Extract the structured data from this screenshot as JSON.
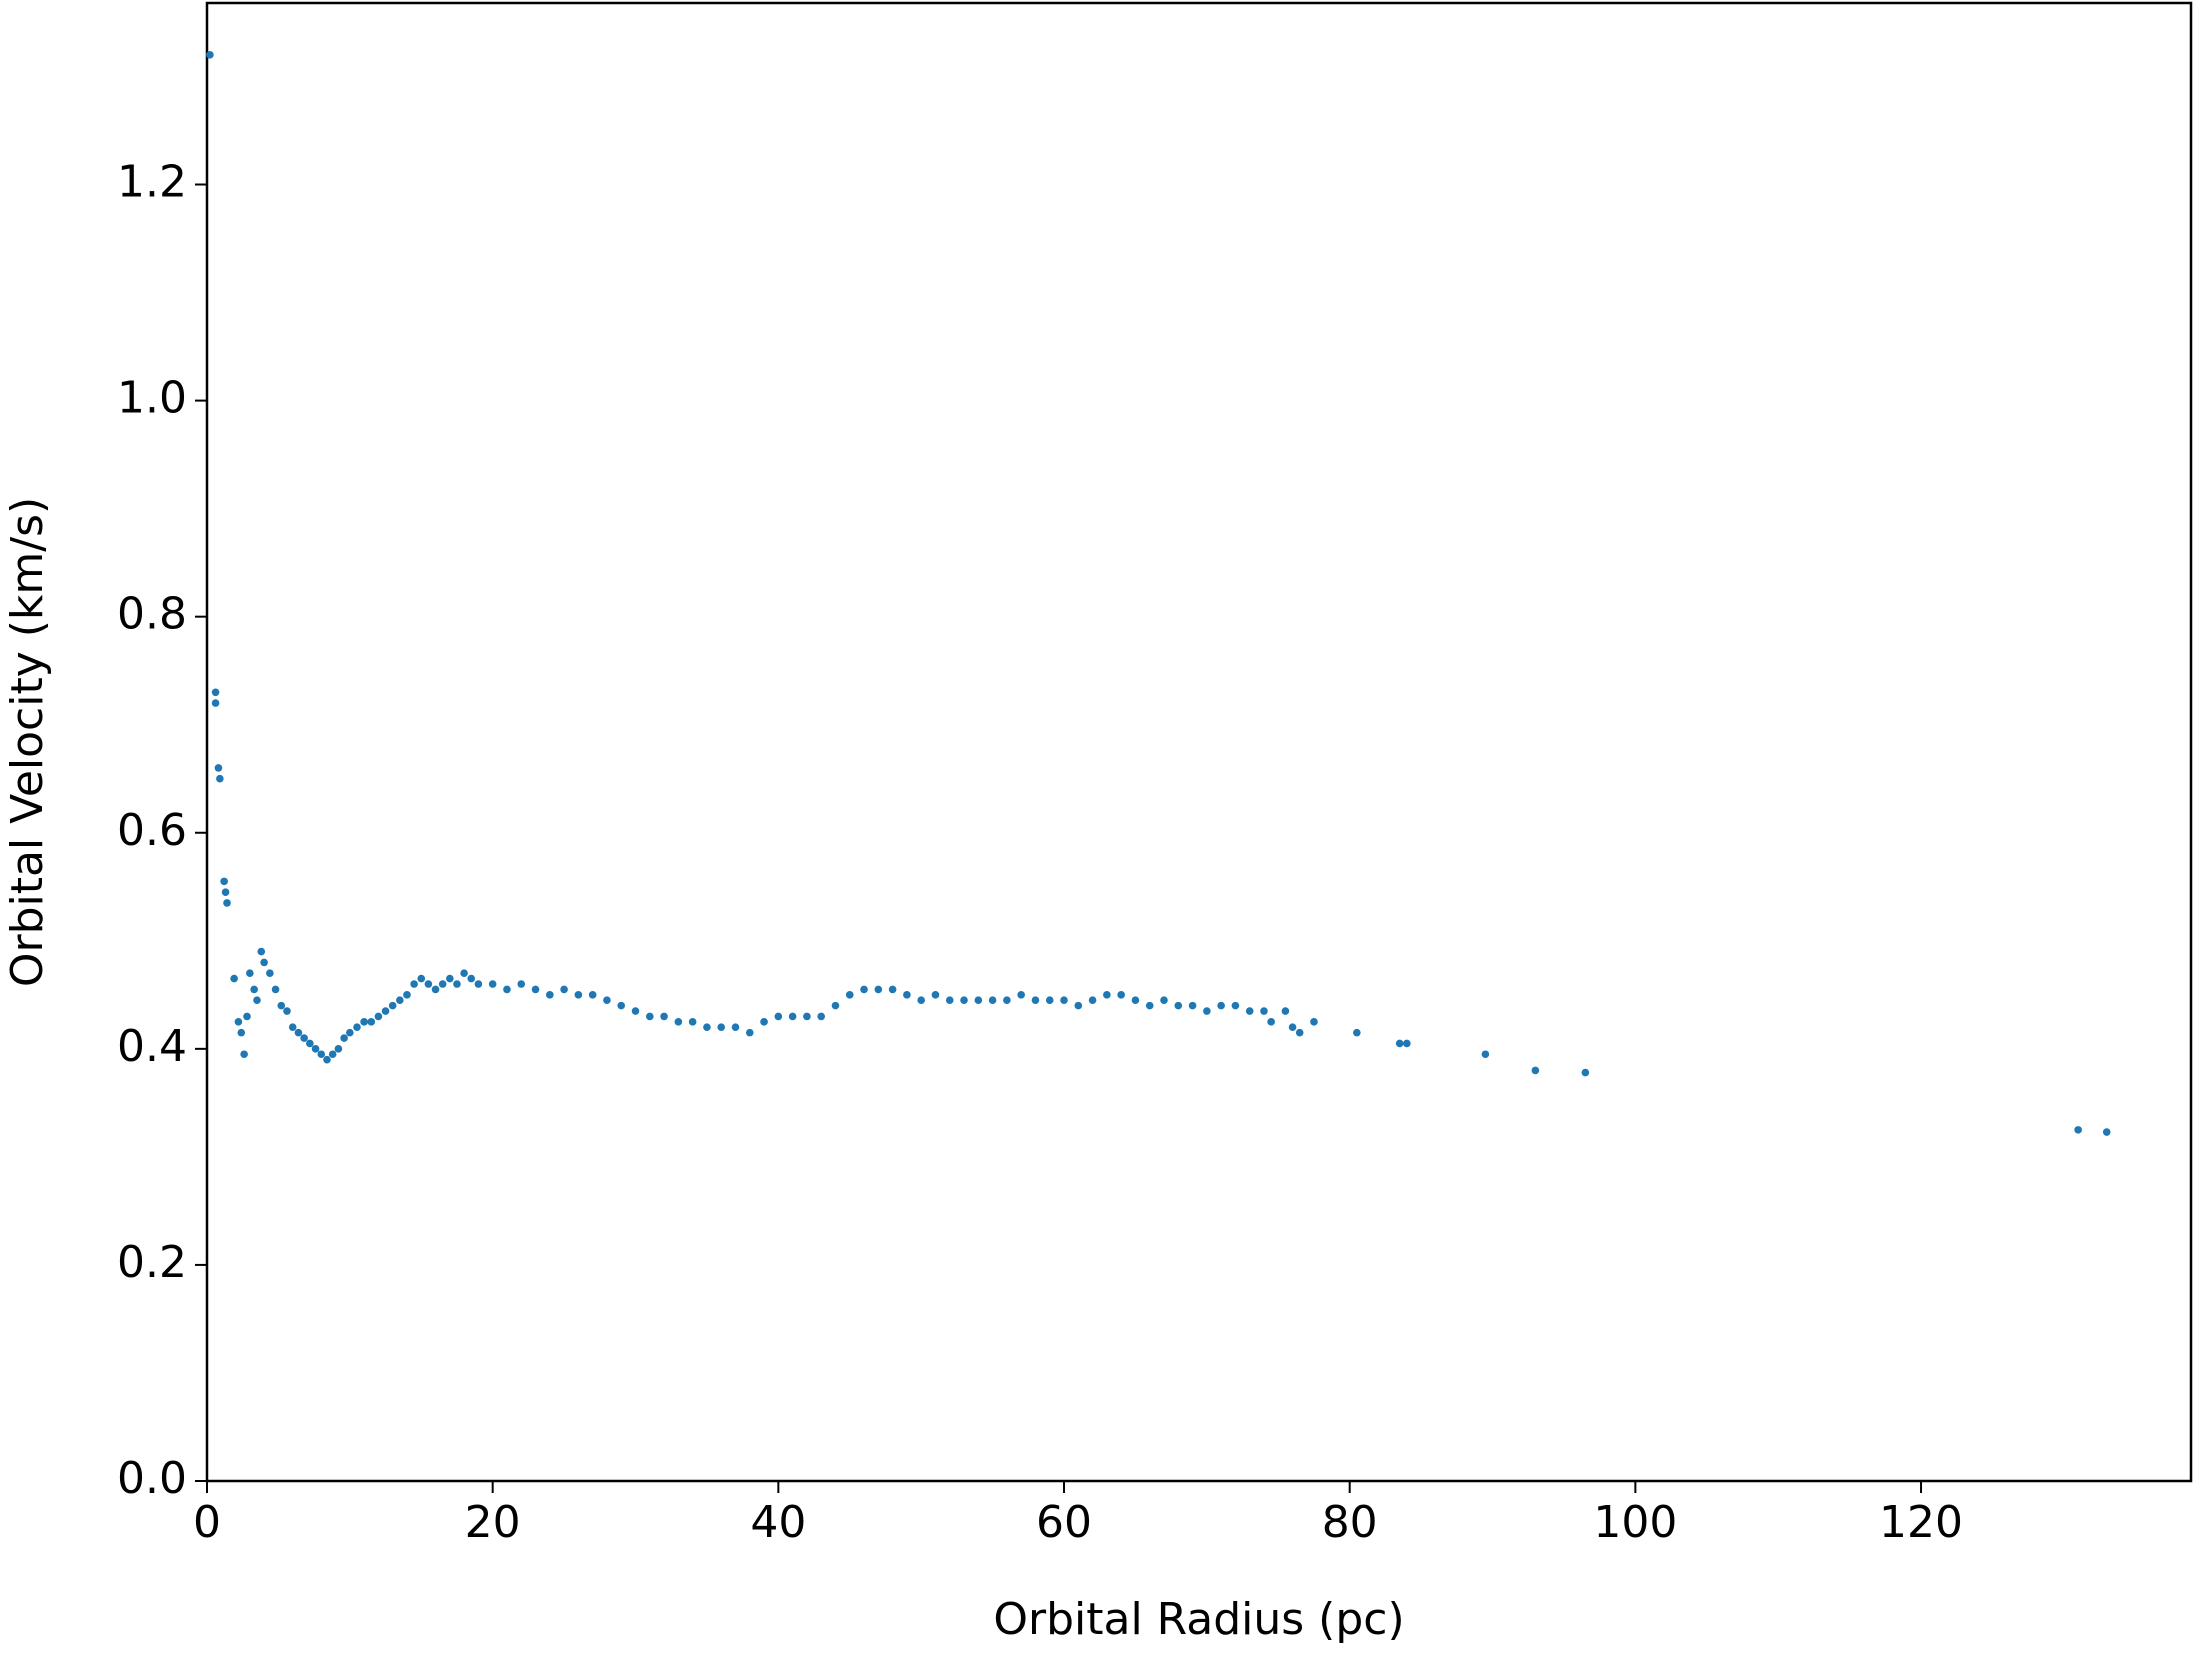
{
  "chart_data": {
    "type": "scatter",
    "x_label": "Orbital Radius (pc)",
    "y_label": "Orbital Velocity (km/s)",
    "color": "#1f77b4",
    "xlim": [
      0,
      138.9
    ],
    "ylim": [
      0,
      1.368
    ],
    "xticks": [
      0,
      20,
      40,
      60,
      80,
      100,
      120
    ],
    "yticks": [
      {
        "value": 0,
        "label": "0.0"
      },
      0.2,
      0.4,
      0.6,
      0.8,
      {
        "value": 1,
        "label": "1.0"
      },
      1.2
    ],
    "grid": false,
    "x": [
      0.2,
      0.6,
      0.6,
      0.8,
      0.9,
      1.2,
      1.3,
      1.4,
      1.9,
      2.2,
      2.4,
      2.6,
      2.8,
      3.0,
      3.3,
      3.5,
      3.8,
      4.0,
      4.4,
      4.8,
      5.2,
      5.6,
      6.0,
      6.4,
      6.8,
      7.2,
      7.6,
      8.0,
      8.4,
      8.8,
      9.2,
      9.6,
      10.0,
      10.5,
      11,
      11.5,
      12,
      12.5,
      13,
      13.5,
      14,
      14.5,
      15,
      15.5,
      16,
      16.5,
      17,
      17.5,
      18,
      18.5,
      19,
      20,
      21,
      22,
      23,
      24,
      25,
      26,
      27,
      28,
      29,
      30,
      31,
      32,
      33,
      34,
      35,
      36,
      37,
      38,
      39,
      40,
      41,
      42,
      43,
      44,
      45,
      46,
      47,
      48,
      49,
      50,
      51,
      52,
      53,
      54,
      55,
      56,
      57,
      58,
      59,
      60,
      61,
      62,
      63,
      64,
      65,
      66,
      67,
      68,
      69,
      70,
      71,
      72,
      73,
      74,
      74.5,
      75.5,
      76,
      76.5,
      77.5,
      80.5,
      83.5,
      84,
      89.5,
      93,
      96.5,
      131,
      133
    ],
    "values": [
      1.32,
      0.73,
      0.72,
      0.66,
      0.65,
      0.555,
      0.545,
      0.535,
      0.465,
      0.425,
      0.415,
      0.395,
      0.43,
      0.47,
      0.455,
      0.445,
      0.49,
      0.48,
      0.47,
      0.455,
      0.44,
      0.435,
      0.42,
      0.415,
      0.41,
      0.405,
      0.4,
      0.395,
      0.39,
      0.395,
      0.4,
      0.41,
      0.415,
      0.42,
      0.425,
      0.425,
      0.43,
      0.435,
      0.44,
      0.445,
      0.45,
      0.46,
      0.465,
      0.46,
      0.455,
      0.46,
      0.465,
      0.46,
      0.47,
      0.465,
      0.46,
      0.46,
      0.455,
      0.46,
      0.455,
      0.45,
      0.455,
      0.45,
      0.45,
      0.445,
      0.44,
      0.435,
      0.43,
      0.43,
      0.425,
      0.425,
      0.42,
      0.42,
      0.42,
      0.415,
      0.425,
      0.43,
      0.43,
      0.43,
      0.43,
      0.44,
      0.45,
      0.455,
      0.455,
      0.455,
      0.45,
      0.445,
      0.45,
      0.445,
      0.445,
      0.445,
      0.445,
      0.445,
      0.45,
      0.445,
      0.445,
      0.445,
      0.44,
      0.445,
      0.45,
      0.45,
      0.445,
      0.44,
      0.445,
      0.44,
      0.44,
      0.435,
      0.44,
      0.44,
      0.435,
      0.435,
      0.425,
      0.435,
      0.42,
      0.415,
      0.425,
      0.415,
      0.405,
      0.405,
      0.395,
      0.38,
      0.378,
      0.325,
      0.323
    ]
  }
}
